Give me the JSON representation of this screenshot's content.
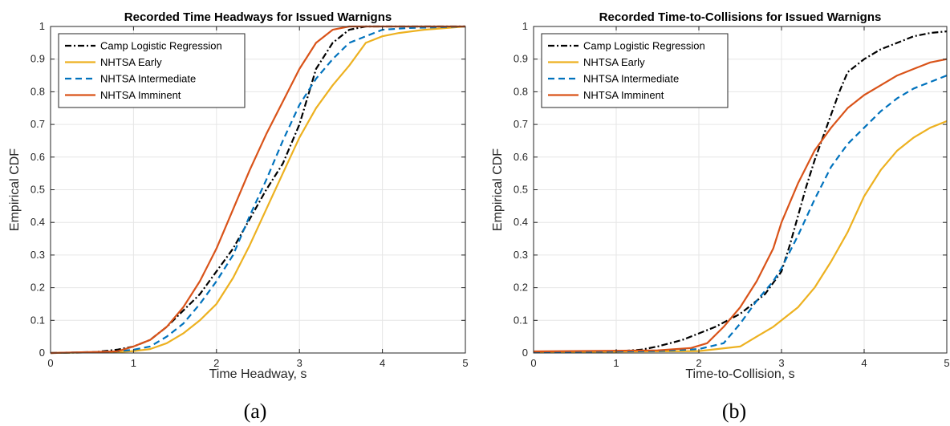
{
  "colors": {
    "Camp Logistic Regression": "#000000",
    "NHTSA Early": "#EDB120",
    "NHTSA Intermediate": "#0072BD",
    "NHTSA Imminent": "#D95319",
    "grid": "#e6e6e6",
    "axis": "#262626"
  },
  "chart_data": [
    {
      "type": "line",
      "title": "Recorded Time Headways for Issued Warnigns",
      "xlabel": "Time Headway, s",
      "ylabel": "Empirical CDF",
      "caption": "(a)",
      "xlim": [
        0,
        5
      ],
      "ylim": [
        0,
        1
      ],
      "xticks": [
        0,
        1,
        2,
        3,
        4,
        5
      ],
      "yticks": [
        0,
        0.1,
        0.2,
        0.3,
        0.4,
        0.5,
        0.6,
        0.7,
        0.8,
        0.9,
        1
      ],
      "ytick_labels": [
        "0",
        "0.1",
        "0.2",
        "0.3",
        "0.4",
        "0.5",
        "0.6",
        "0.7",
        "0.8",
        "0.9",
        "1"
      ],
      "grid": true,
      "legend_position": "top-left",
      "series": [
        {
          "name": "Camp Logistic Regression",
          "style": "dashdot",
          "x": [
            0,
            0.5,
            0.8,
            1.0,
            1.2,
            1.4,
            1.6,
            1.8,
            2.0,
            2.2,
            2.4,
            2.6,
            2.8,
            3.0,
            3.2,
            3.4,
            3.6,
            3.8,
            4.0,
            4.2,
            5.0
          ],
          "y": [
            0,
            0.002,
            0.01,
            0.02,
            0.04,
            0.08,
            0.13,
            0.18,
            0.25,
            0.32,
            0.41,
            0.5,
            0.58,
            0.7,
            0.87,
            0.95,
            0.99,
            1.0,
            1.0,
            1.0,
            1.0
          ]
        },
        {
          "name": "NHTSA Early",
          "style": "solid",
          "x": [
            0,
            0.8,
            1.0,
            1.2,
            1.4,
            1.6,
            1.8,
            2.0,
            2.2,
            2.4,
            2.6,
            2.8,
            3.0,
            3.2,
            3.4,
            3.6,
            3.8,
            4.0,
            4.2,
            4.5,
            5.0
          ],
          "y": [
            0,
            0.003,
            0.006,
            0.012,
            0.03,
            0.06,
            0.1,
            0.15,
            0.23,
            0.33,
            0.44,
            0.55,
            0.66,
            0.75,
            0.82,
            0.88,
            0.95,
            0.97,
            0.98,
            0.99,
            1.0
          ]
        },
        {
          "name": "NHTSA Intermediate",
          "style": "dashed",
          "x": [
            0,
            0.8,
            1.0,
            1.2,
            1.4,
            1.6,
            1.8,
            2.0,
            2.2,
            2.4,
            2.6,
            2.8,
            3.0,
            3.2,
            3.4,
            3.6,
            3.8,
            4.0,
            4.3,
            5.0
          ],
          "y": [
            0,
            0.005,
            0.01,
            0.02,
            0.05,
            0.09,
            0.15,
            0.22,
            0.3,
            0.42,
            0.53,
            0.65,
            0.76,
            0.84,
            0.9,
            0.95,
            0.97,
            0.99,
            0.995,
            1.0
          ]
        },
        {
          "name": "NHTSA Imminent",
          "style": "solid",
          "x": [
            0,
            0.8,
            1.0,
            1.2,
            1.4,
            1.6,
            1.8,
            2.0,
            2.2,
            2.4,
            2.6,
            2.8,
            3.0,
            3.2,
            3.4,
            3.6,
            3.8,
            4.0,
            5.0
          ],
          "y": [
            0,
            0.005,
            0.02,
            0.04,
            0.08,
            0.14,
            0.22,
            0.32,
            0.44,
            0.56,
            0.67,
            0.77,
            0.87,
            0.95,
            0.99,
            1.0,
            1.0,
            1.0,
            1.0
          ]
        }
      ]
    },
    {
      "type": "line",
      "title": "Recorded Time-to-Collisions for Issued Warnigns",
      "xlabel": "Time-to-Collision, s",
      "ylabel": "Empirical CDF",
      "caption": "(b)",
      "xlim": [
        0,
        5
      ],
      "ylim": [
        0,
        1
      ],
      "xticks": [
        0,
        1,
        2,
        3,
        4,
        5
      ],
      "yticks": [
        0,
        0.1,
        0.2,
        0.3,
        0.4,
        0.5,
        0.6,
        0.7,
        0.8,
        0.9,
        1
      ],
      "ytick_labels": [
        "0",
        "0.1",
        "0.2",
        "0.3",
        "0.4",
        "0.5",
        "0.6",
        "0.7",
        "0.8",
        "0.9",
        "1"
      ],
      "grid": true,
      "legend_position": "top-left",
      "series": [
        {
          "name": "Camp Logistic Regression",
          "style": "dashdot",
          "x": [
            0,
            1.0,
            1.3,
            1.5,
            1.8,
            2.0,
            2.2,
            2.5,
            2.8,
            3.0,
            3.1,
            3.2,
            3.3,
            3.4,
            3.5,
            3.6,
            3.7,
            3.8,
            4.0,
            4.2,
            4.4,
            4.6,
            4.8,
            5.0
          ],
          "y": [
            0.003,
            0.005,
            0.01,
            0.02,
            0.04,
            0.06,
            0.08,
            0.12,
            0.18,
            0.25,
            0.33,
            0.42,
            0.51,
            0.59,
            0.66,
            0.73,
            0.8,
            0.86,
            0.9,
            0.93,
            0.95,
            0.97,
            0.98,
            0.985
          ]
        },
        {
          "name": "NHTSA Early",
          "style": "solid",
          "x": [
            0,
            2.0,
            2.5,
            2.7,
            2.9,
            3.0,
            3.2,
            3.4,
            3.6,
            3.8,
            4.0,
            4.2,
            4.4,
            4.6,
            4.8,
            5.0
          ],
          "y": [
            0.003,
            0.006,
            0.02,
            0.05,
            0.08,
            0.1,
            0.14,
            0.2,
            0.28,
            0.37,
            0.48,
            0.56,
            0.62,
            0.66,
            0.69,
            0.71
          ]
        },
        {
          "name": "NHTSA Intermediate",
          "style": "dashed",
          "x": [
            0,
            1.5,
            2.0,
            2.3,
            2.5,
            2.7,
            2.9,
            3.0,
            3.2,
            3.4,
            3.6,
            3.8,
            4.0,
            4.2,
            4.4,
            4.6,
            4.8,
            5.0
          ],
          "y": [
            0.003,
            0.006,
            0.012,
            0.03,
            0.09,
            0.16,
            0.22,
            0.26,
            0.36,
            0.47,
            0.57,
            0.64,
            0.69,
            0.74,
            0.78,
            0.81,
            0.83,
            0.85
          ]
        },
        {
          "name": "NHTSA Imminent",
          "style": "solid",
          "x": [
            0,
            1.5,
            1.9,
            2.1,
            2.3,
            2.5,
            2.7,
            2.9,
            3.0,
            3.2,
            3.4,
            3.6,
            3.8,
            4.0,
            4.2,
            4.4,
            4.6,
            4.8,
            5.0
          ],
          "y": [
            0.005,
            0.008,
            0.015,
            0.03,
            0.08,
            0.14,
            0.22,
            0.32,
            0.4,
            0.52,
            0.62,
            0.69,
            0.75,
            0.79,
            0.82,
            0.85,
            0.87,
            0.89,
            0.9
          ]
        }
      ]
    }
  ]
}
